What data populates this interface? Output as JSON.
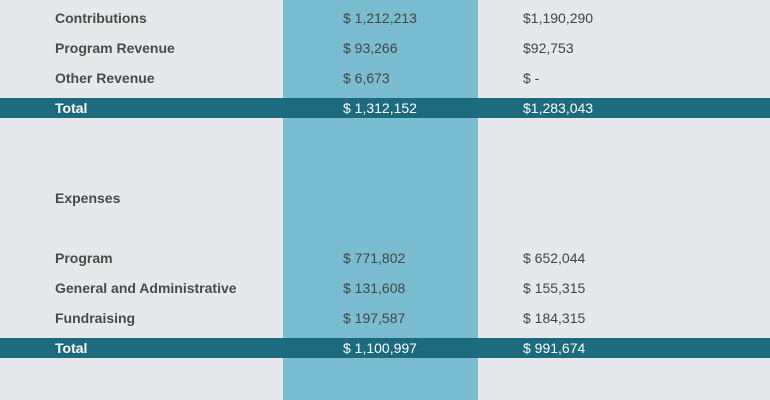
{
  "revenue": {
    "rows": [
      {
        "label": "Contributions",
        "col1": "$ 1,212,213",
        "col2": "$1,190,290"
      },
      {
        "label": "Program Revenue",
        "col1": "$ 93,266",
        "col2": "$92,753"
      },
      {
        "label": "Other Revenue",
        "col1": "$ 6,673",
        "col2": "$ -"
      }
    ],
    "total": {
      "label": "Total",
      "col1": "$ 1,312,152",
      "col2": "$1,283,043"
    }
  },
  "expenses": {
    "heading": "Expenses",
    "rows": [
      {
        "label": "Program",
        "col1": "$ 771,802",
        "col2": "$ 652,044"
      },
      {
        "label": "General and Administrative",
        "col1": "$ 131,608",
        "col2": "$ 155,315"
      },
      {
        "label": "Fundraising",
        "col1": "$ 197,587",
        "col2": "$ 184,315"
      }
    ],
    "total": {
      "label": "Total",
      "col1": "$ 1,100,997",
      "col2": "$ 991,674"
    }
  },
  "colors": {
    "background": "#e7e8e9",
    "highlight_column": "#7bbdd0",
    "total_bar": "#1b6a7e"
  }
}
